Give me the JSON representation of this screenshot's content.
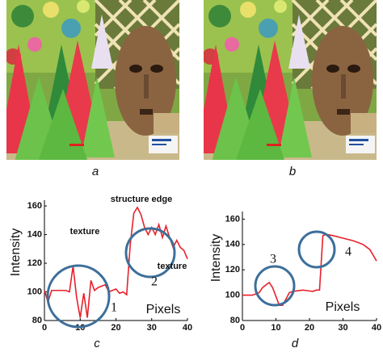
{
  "figure": {
    "panels": [
      {
        "label": "a"
      },
      {
        "label": "b"
      }
    ]
  },
  "chart_data": [
    {
      "type": "line",
      "caption": "c",
      "ylabel": "Intensity",
      "xlabel": "Pixels",
      "x": [
        0,
        1,
        2,
        6,
        7,
        8,
        9,
        10,
        11,
        12,
        13,
        14,
        15,
        17,
        18,
        20,
        21,
        22,
        23,
        24,
        25,
        26,
        27,
        28,
        29,
        30,
        31,
        32,
        33,
        34,
        35,
        36,
        37,
        38,
        39,
        40
      ],
      "series": [
        {
          "color": "#e8202a",
          "values": [
            101,
            93,
            101,
            101,
            100,
            118,
            96,
            82,
            99,
            82,
            108,
            101,
            103,
            105,
            100,
            102,
            99,
            100,
            98,
            133,
            155,
            159,
            154,
            145,
            140,
            145,
            140,
            147,
            138,
            146,
            138,
            131,
            136,
            131,
            129,
            123
          ]
        }
      ],
      "xlim": [
        0,
        40
      ],
      "ylim": [
        80,
        164
      ],
      "xticks": [
        0,
        10,
        20,
        30,
        40
      ],
      "yticks": [
        80,
        100,
        120,
        140,
        160
      ],
      "annotations": [
        {
          "text": "texture"
        },
        {
          "text": "structure edge"
        },
        {
          "text": "texture"
        },
        {
          "text": "1"
        },
        {
          "text": "2"
        }
      ]
    },
    {
      "type": "line",
      "caption": "d",
      "ylabel": "Intensity",
      "xlabel": "Pixels",
      "x": [
        0,
        3,
        5,
        6,
        8,
        9,
        10,
        11,
        12,
        13,
        14,
        15,
        18,
        21,
        22,
        23,
        24,
        25,
        27,
        30,
        33,
        36,
        38,
        40
      ],
      "series": [
        {
          "color": "#e8202a",
          "values": [
            100,
            100,
            102,
            106,
            110,
            106,
            99,
            92,
            92,
            97,
            102,
            103,
            104,
            103,
            104,
            104,
            147,
            148,
            147,
            145,
            143,
            140,
            136,
            127
          ]
        }
      ],
      "xlim": [
        0,
        40
      ],
      "ylim": [
        80,
        166
      ],
      "xticks": [
        0,
        10,
        20,
        30,
        40
      ],
      "yticks": [
        80,
        100,
        120,
        140,
        160
      ],
      "annotations": [
        {
          "text": "3"
        },
        {
          "text": "4"
        }
      ]
    }
  ]
}
